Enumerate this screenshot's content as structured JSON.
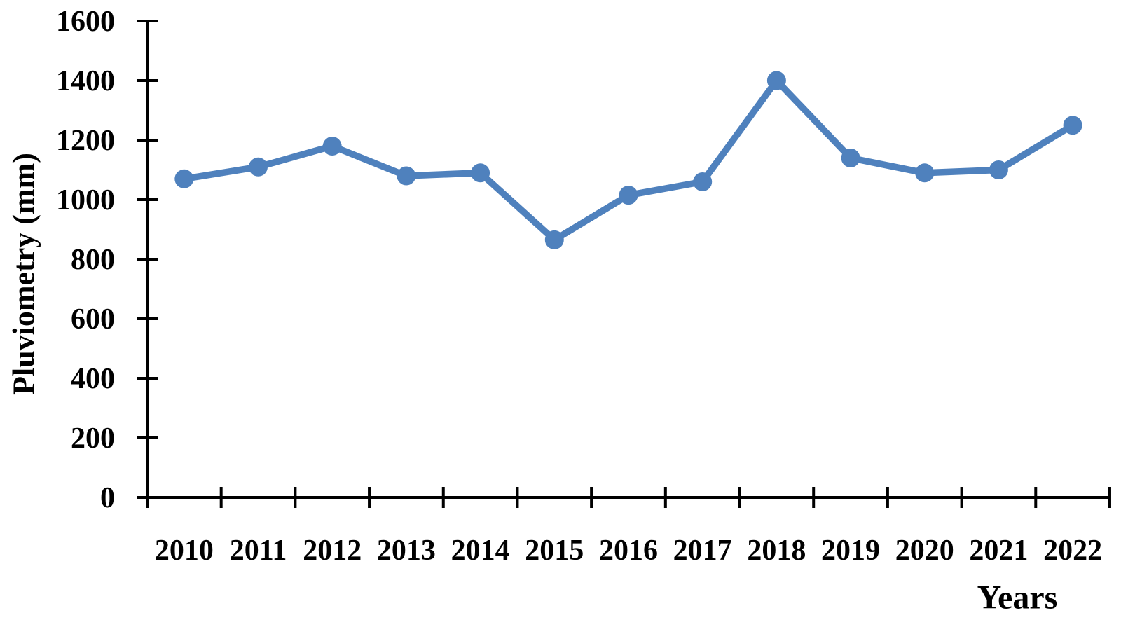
{
  "chart_data": {
    "type": "line",
    "categories": [
      "2010",
      "2011",
      "2012",
      "2013",
      "2014",
      "2015",
      "2016",
      "2017",
      "2018",
      "2019",
      "2020",
      "2021",
      "2022"
    ],
    "values": [
      1070,
      1110,
      1180,
      1080,
      1090,
      865,
      1015,
      1060,
      1400,
      1140,
      1090,
      1100,
      1250
    ],
    "title": "",
    "xlabel": "Years",
    "ylabel": "Pluviometry (mm)",
    "ylim": [
      0,
      1600
    ],
    "ytick_step": 200,
    "ytick_labels": [
      "0",
      "200",
      "400",
      "600",
      "800",
      "1000",
      "1200",
      "1400",
      "1600"
    ],
    "grid": false,
    "legend": "none",
    "line_color": "#4f81bd",
    "marker": "circle",
    "axis_color": "#000000",
    "background_color": "#ffffff"
  }
}
